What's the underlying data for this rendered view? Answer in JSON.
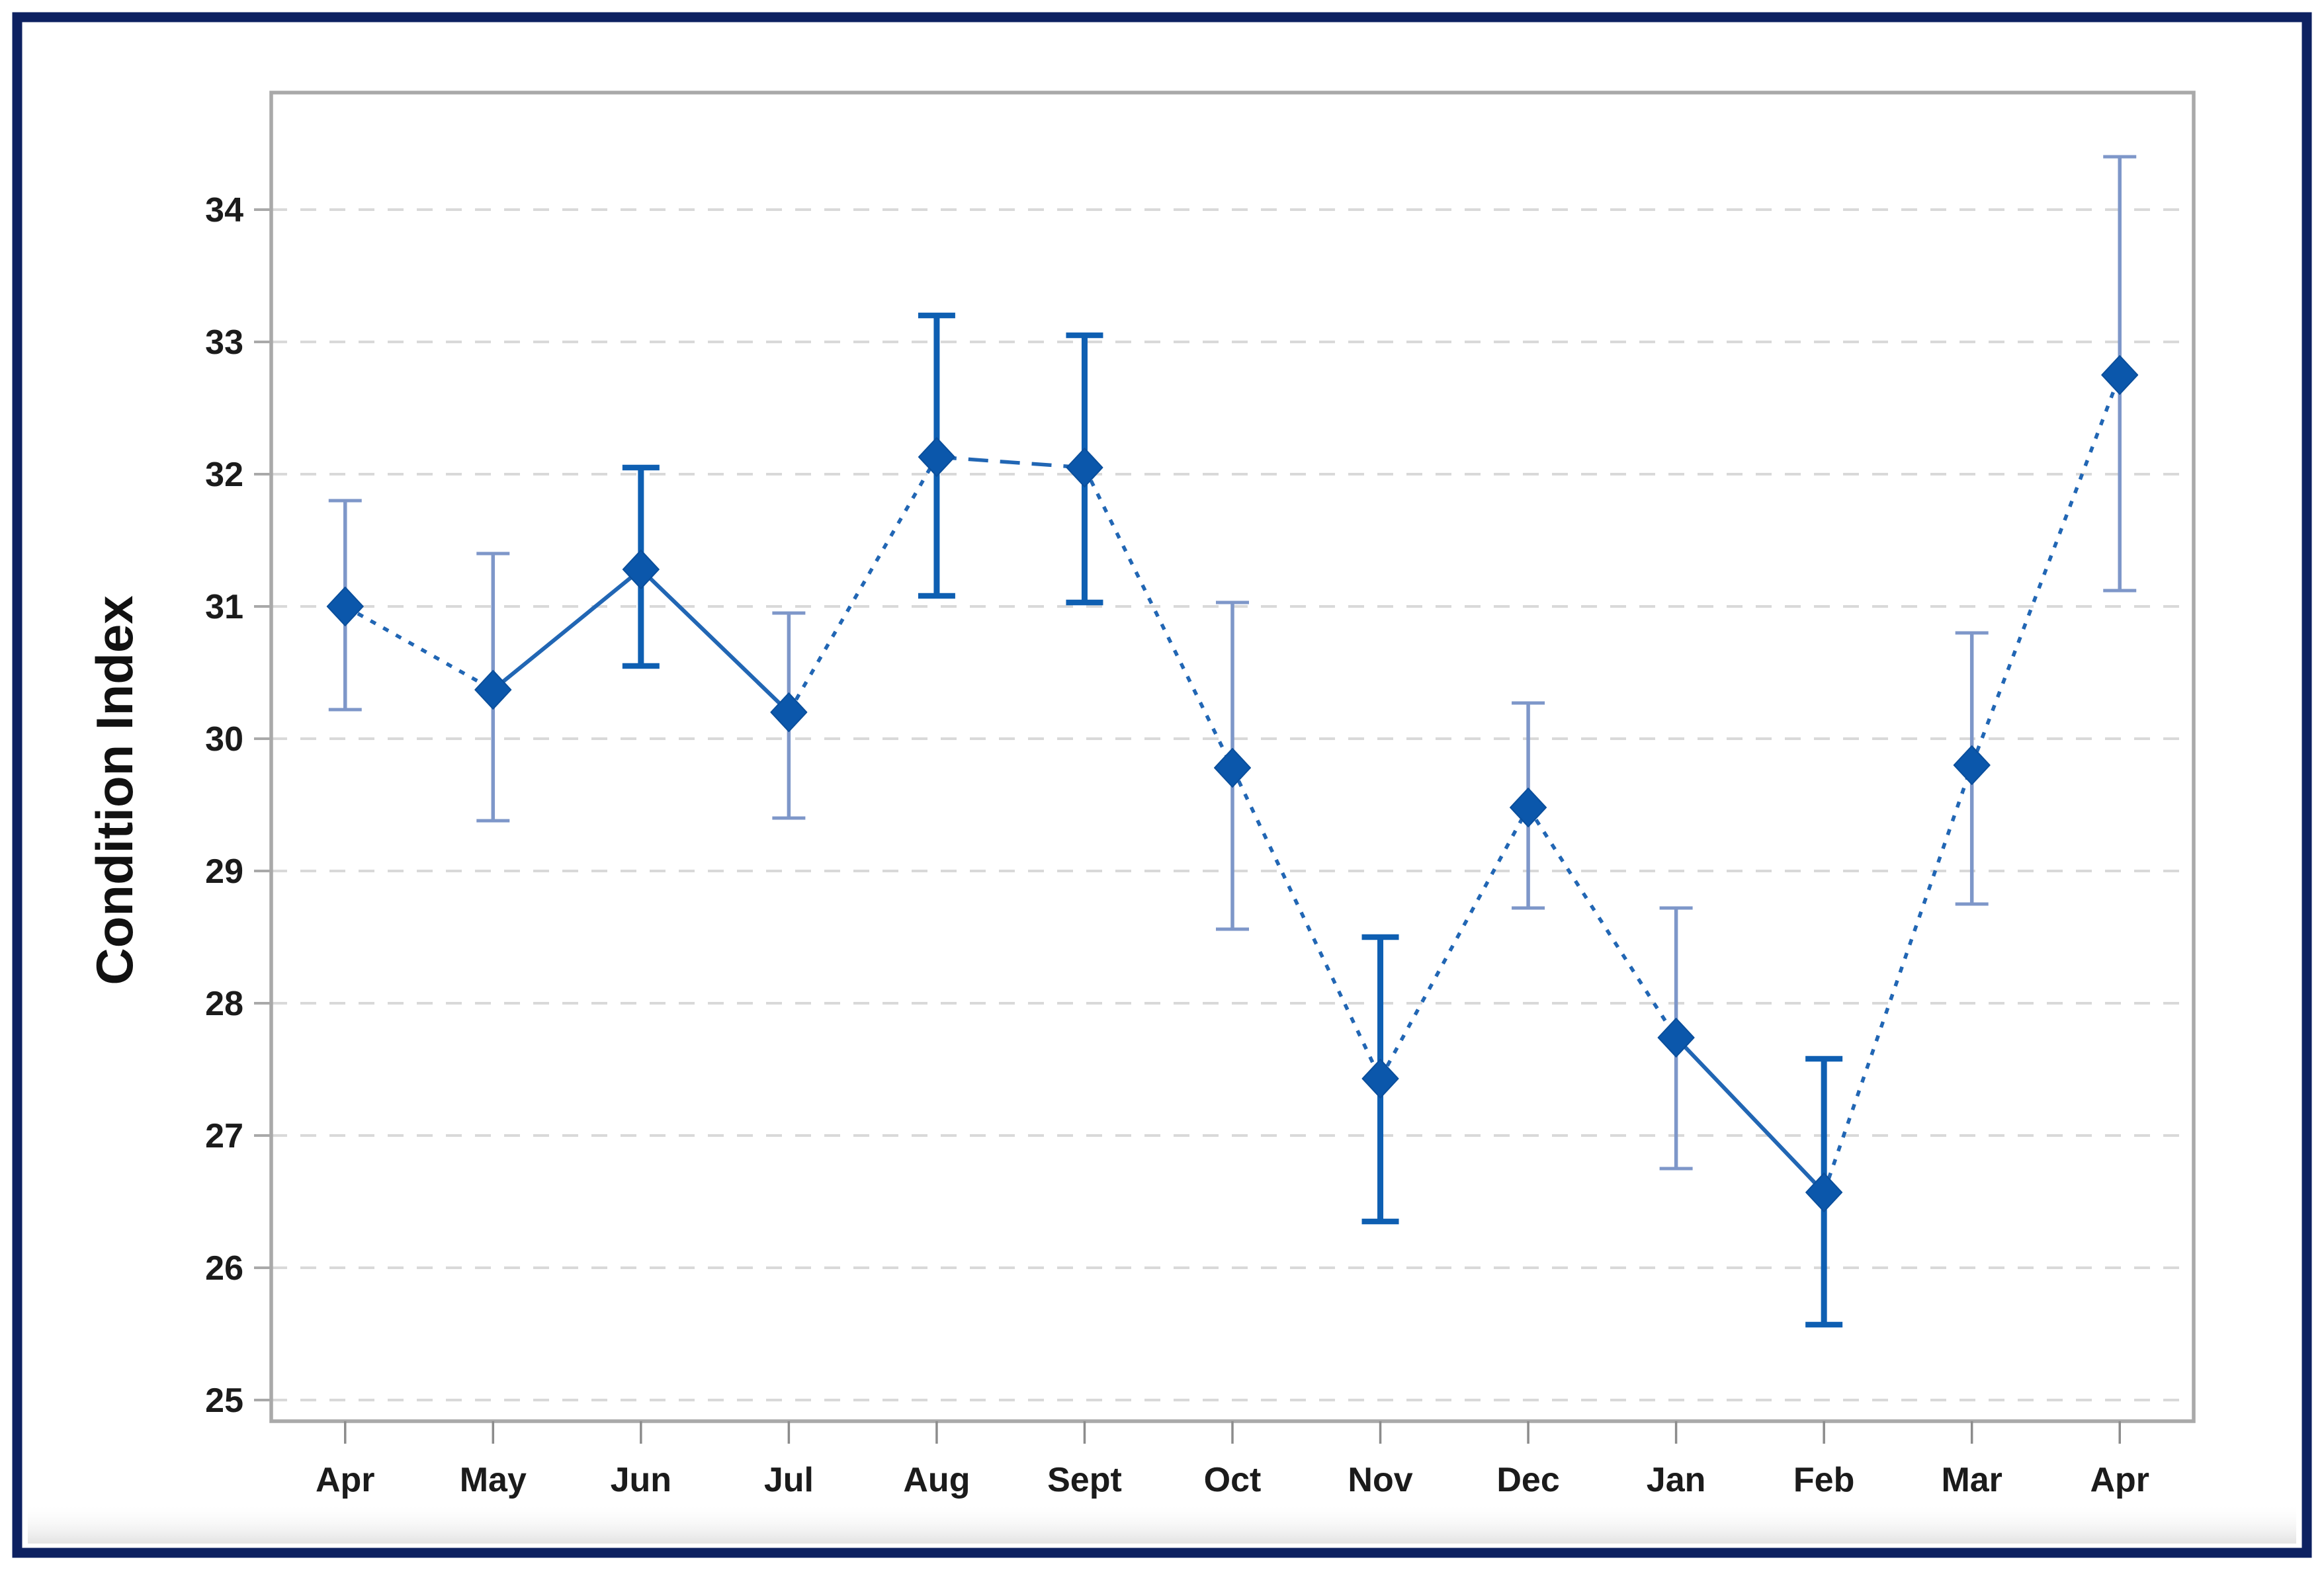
{
  "frame": {
    "border_color": "#0d2161",
    "background": "#ffffff"
  },
  "chart_data": {
    "type": "line",
    "title": "",
    "xlabel": "",
    "ylabel": "Condition Index",
    "categories": [
      "Apr",
      "May",
      "Jun",
      "Jul",
      "Aug",
      "Sept",
      "Oct",
      "Nov",
      "Dec",
      "Jan",
      "Feb",
      "Mar",
      "Apr"
    ],
    "series": [
      {
        "name": "Condition Index",
        "values": [
          31.0,
          30.37,
          31.28,
          30.2,
          32.13,
          32.05,
          29.78,
          27.43,
          29.48,
          27.74,
          26.57,
          29.8,
          32.75
        ],
        "ci_lower": [
          30.22,
          29.38,
          30.55,
          29.4,
          31.08,
          31.03,
          28.56,
          26.35,
          28.72,
          26.75,
          25.57,
          28.75,
          31.12
        ],
        "ci_upper": [
          31.8,
          31.4,
          32.05,
          30.95,
          33.2,
          33.05,
          31.03,
          28.5,
          30.27,
          28.72,
          27.58,
          30.8,
          34.4
        ]
      }
    ],
    "ylim": [
      24.85,
      34.9
    ],
    "yticks": [
      "25",
      "26",
      "27",
      "28",
      "29",
      "30",
      "31",
      "32",
      "33",
      "34"
    ],
    "grid": {
      "horizontal": true,
      "style": "dashed",
      "color": "#d9d9d9"
    },
    "legend": null,
    "marker": "diamond",
    "error_bar_styles": [
      "light",
      "light",
      "dark",
      "light",
      "dark",
      "dark",
      "light",
      "dark",
      "light",
      "light",
      "dark",
      "light",
      "light"
    ],
    "segment_styles": [
      "dotted",
      "solid",
      "solid",
      "dotted",
      "dashed",
      "dotted",
      "dotted",
      "dotted",
      "dotted",
      "solid",
      "dotted",
      "dotted"
    ],
    "colors": {
      "marker": "#0b57ab",
      "marker_edge": "#0a4e9b",
      "error_bar_dark": "#0e5fb2",
      "error_bar_light": "#7e97c9",
      "connector": "#2166b4",
      "gridline": "#d9d9d9",
      "axis": "#a9a9a9",
      "x_tick": "#8c8c8c",
      "tick_text": "#1b1b1b"
    }
  }
}
